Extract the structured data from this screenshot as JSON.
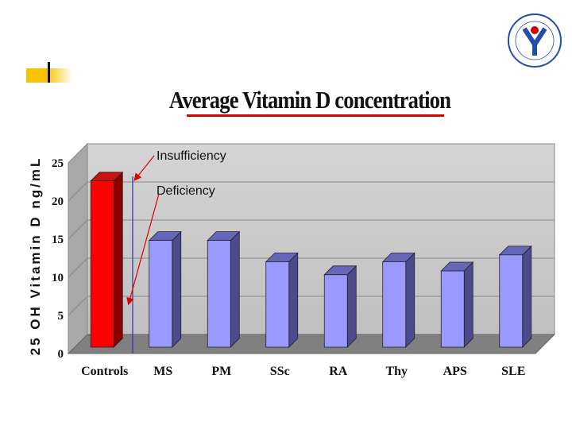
{
  "slide": {
    "title": "Average Vitamin D concentration"
  },
  "chart_data": {
    "type": "bar",
    "title": "Average Vitamin D concentration",
    "xlabel": "",
    "ylabel": "25 OH Vitamin D ng/mL",
    "ylim": [
      0,
      25
    ],
    "yticks": [
      "0",
      "5",
      "10",
      "15",
      "20",
      "25"
    ],
    "categories": [
      "Controls",
      "MS",
      "PM",
      "SSc",
      "RA",
      "Thy",
      "APS",
      "SLE"
    ],
    "values": [
      21.8,
      14.0,
      14.0,
      11.2,
      9.5,
      11.2,
      10.0,
      12.1
    ],
    "grid": true,
    "annotations": [
      {
        "label": "Insufficiency",
        "value": 22
      },
      {
        "label": "Deficiency",
        "value": 6
      }
    ],
    "colors": {
      "highlight": "#ff0000",
      "bar": "#9999ff",
      "plot_back": "#c0c0c0",
      "floor": "#808080",
      "annotation_arrow": "#dd0000",
      "cutoff_line": "#3333aa"
    }
  }
}
